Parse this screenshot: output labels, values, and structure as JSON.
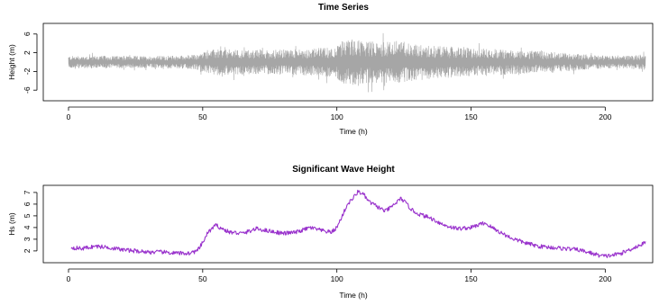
{
  "chart_data": [
    {
      "type": "line",
      "title": "Time Series",
      "xlabel": "Time (h)",
      "ylabel": "Height (m)",
      "xlim": [
        0,
        215
      ],
      "ylim": [
        -7.5,
        7.5
      ],
      "x_ticks": [
        0,
        50,
        100,
        150,
        200
      ],
      "y_ticks": [
        -6,
        -2,
        2,
        6
      ],
      "grid": false,
      "series": [
        {
          "color": "#a6a6a6",
          "envelope": {
            "x": [
              0,
              10,
              20,
              30,
              40,
              48,
              50,
              55,
              60,
              70,
              80,
              90,
              95,
              100,
              102,
              105,
              108,
              110,
              115,
              120,
              125,
              130,
              140,
              150,
              160,
              170,
              180,
              190,
              195,
              200,
              205,
              210,
              215
            ],
            "amp": [
              1.3,
              1.4,
              1.3,
              1.3,
              1.4,
              1.6,
              2.2,
              2.8,
              2.7,
              2.6,
              2.7,
              2.9,
              3.1,
              3.3,
              4.6,
              5.0,
              4.8,
              4.6,
              4.4,
              4.4,
              4.5,
              3.8,
              3.4,
              3.0,
              2.8,
              2.5,
              2.2,
              1.8,
              1.6,
              1.4,
              1.3,
              1.5,
              1.8
            ]
          }
        }
      ]
    },
    {
      "type": "line",
      "title": "Significant Wave Height",
      "xlabel": "Time (h)",
      "ylabel": "Hs (m)",
      "xlim": [
        0,
        215
      ],
      "ylim": [
        1.3,
        7.3
      ],
      "x_ticks": [
        0,
        50,
        100,
        150,
        200
      ],
      "y_ticks": [
        2,
        3,
        4,
        5,
        6,
        7
      ],
      "grid": false,
      "series": [
        {
          "color": "#9932cc",
          "x": [
            1,
            5,
            10,
            15,
            20,
            25,
            30,
            35,
            40,
            45,
            48,
            50,
            52,
            55,
            58,
            60,
            65,
            70,
            75,
            80,
            85,
            90,
            95,
            98,
            100,
            102,
            104,
            106,
            108,
            110,
            112,
            115,
            118,
            120,
            122,
            124,
            126,
            128,
            130,
            135,
            140,
            145,
            150,
            155,
            160,
            165,
            170,
            175,
            180,
            185,
            190,
            195,
            198,
            200,
            203,
            206,
            210,
            215
          ],
          "y": [
            2.3,
            2.2,
            2.4,
            2.3,
            2.1,
            2.0,
            1.9,
            1.9,
            1.8,
            1.8,
            2.0,
            2.7,
            3.6,
            4.2,
            3.8,
            3.6,
            3.5,
            3.9,
            3.7,
            3.5,
            3.6,
            4.0,
            3.7,
            3.6,
            4.0,
            5.0,
            6.0,
            6.5,
            7.1,
            6.8,
            6.2,
            5.8,
            5.4,
            5.7,
            6.1,
            6.5,
            6.0,
            5.5,
            5.2,
            4.8,
            4.2,
            3.9,
            4.0,
            4.4,
            3.7,
            3.1,
            2.7,
            2.4,
            2.3,
            2.2,
            2.1,
            1.8,
            1.6,
            1.55,
            1.65,
            1.8,
            2.2,
            2.7
          ]
        }
      ]
    }
  ]
}
